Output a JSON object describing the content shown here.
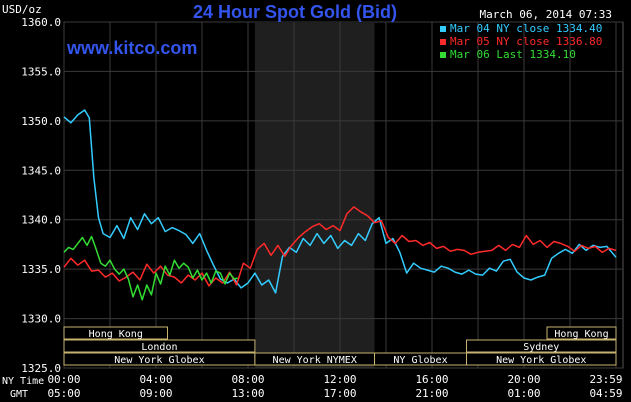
{
  "chart_data": {
    "type": "line",
    "title": "24 Hour Spot Gold (Bid)",
    "subtitle": "www.kitco.com",
    "date_stamp": "March 06, 2014 07:33",
    "ylabel": "USD/oz",
    "ylim": [
      1325,
      1360
    ],
    "y_ticks": [
      "1325.0",
      "1330.0",
      "1335.0",
      "1340.0",
      "1345.0",
      "1350.0",
      "1355.0",
      "1360.0"
    ],
    "x_ticks_ny": [
      "00:00",
      "04:00",
      "08:00",
      "12:00",
      "16:00",
      "20:00",
      "23:59"
    ],
    "x_ticks_gmt": [
      "05:00",
      "09:00",
      "13:00",
      "17:00",
      "21:00",
      "01:00",
      "04:59"
    ],
    "x_row_labels": [
      "NY Time",
      "GMT"
    ],
    "grid": true,
    "legend_position": "top-right",
    "x_unit": "NY hours",
    "sessions": [
      {
        "label": "Hong Kong",
        "start": 0,
        "end": 4.5,
        "row": 0
      },
      {
        "label": "Hong Kong",
        "start": 21,
        "end": 24,
        "row": 0
      },
      {
        "label": "London",
        "start": 0,
        "end": 8.3,
        "row": 1
      },
      {
        "label": "Sydney",
        "start": 17.5,
        "end": 24,
        "row": 1
      },
      {
        "label": "New York Globex",
        "start": 0,
        "end": 8.3,
        "row": 2
      },
      {
        "label": "New York NYMEX",
        "start": 8.3,
        "end": 13.5,
        "row": 2
      },
      {
        "label": "NY Globex",
        "start": 13.5,
        "end": 17.5,
        "row": 2
      },
      {
        "label": "New York Globex",
        "start": 17.5,
        "end": 24,
        "row": 2
      }
    ],
    "highlight_range": [
      8.3,
      13.5
    ],
    "series": [
      {
        "name": "Mar 04 NY close 1334.40",
        "color": "#33ccff",
        "x": [
          0,
          0.3,
          0.6,
          0.9,
          1.1,
          1.3,
          1.5,
          1.7,
          2,
          2.3,
          2.6,
          2.9,
          3.2,
          3.5,
          3.8,
          4.1,
          4.4,
          4.7,
          5,
          5.3,
          5.6,
          5.9,
          6.2,
          6.5,
          6.8,
          7.1,
          7.4,
          7.7,
          8,
          8.3,
          8.6,
          8.9,
          9.2,
          9.5,
          9.8,
          10.1,
          10.4,
          10.7,
          11,
          11.3,
          11.6,
          11.9,
          12.2,
          12.5,
          12.8,
          13.1,
          13.4,
          13.7,
          14,
          14.3,
          14.6,
          14.9,
          15.2,
          15.5,
          15.8,
          16.1,
          16.4,
          16.7,
          17,
          17.3,
          17.6,
          17.9,
          18.2,
          18.5,
          18.8,
          19.1,
          19.4,
          19.7,
          20,
          20.3,
          20.6,
          20.9,
          21.2,
          21.5,
          21.8,
          22.1,
          22.4,
          22.7,
          23,
          23.3,
          23.6,
          24
        ],
        "values": [
          1350.4,
          1349.8,
          1350.6,
          1351.1,
          1350.3,
          1344.2,
          1340.2,
          1338.6,
          1338.2,
          1339.4,
          1338.1,
          1340.2,
          1339.0,
          1340.6,
          1339.6,
          1340.2,
          1338.8,
          1339.2,
          1338.9,
          1338.5,
          1337.6,
          1338.6,
          1336.9,
          1335.4,
          1334.0,
          1333.6,
          1334.0,
          1333.1,
          1333.6,
          1334.6,
          1333.4,
          1333.9,
          1332.6,
          1336.3,
          1337.2,
          1336.7,
          1338.1,
          1337.4,
          1338.6,
          1337.6,
          1338.4,
          1337.1,
          1337.9,
          1337.4,
          1338.6,
          1337.9,
          1339.6,
          1340.2,
          1337.6,
          1338.1,
          1336.7,
          1334.6,
          1335.6,
          1335.1,
          1334.9,
          1334.7,
          1335.3,
          1335.1,
          1334.7,
          1334.5,
          1334.9,
          1334.5,
          1334.4,
          1335.1,
          1334.8,
          1335.8,
          1336.0,
          1334.7,
          1334.1,
          1333.9,
          1334.2,
          1334.4,
          1336.1,
          1336.6,
          1337.0,
          1336.6,
          1337.5,
          1336.9,
          1337.4,
          1337.2,
          1337.3,
          1336.2
        ]
      },
      {
        "name": "Mar 05 NY close 1336.80",
        "color": "#ff2a2a",
        "x": [
          0,
          0.3,
          0.6,
          0.9,
          1.2,
          1.5,
          1.8,
          2.1,
          2.4,
          2.7,
          3,
          3.3,
          3.6,
          3.9,
          4.2,
          4.5,
          4.8,
          5.1,
          5.4,
          5.7,
          6,
          6.3,
          6.6,
          6.9,
          7.2,
          7.5,
          7.8,
          8.1,
          8.4,
          8.7,
          9,
          9.3,
          9.6,
          9.9,
          10.2,
          10.5,
          10.8,
          11.1,
          11.4,
          11.7,
          12,
          12.3,
          12.6,
          12.9,
          13.2,
          13.5,
          13.8,
          14.1,
          14.4,
          14.7,
          15,
          15.3,
          15.6,
          15.9,
          16.2,
          16.5,
          16.8,
          17.1,
          17.4,
          17.7,
          18,
          18.3,
          18.6,
          18.9,
          19.2,
          19.5,
          19.8,
          20.1,
          20.4,
          20.7,
          21,
          21.3,
          21.6,
          21.9,
          22.2,
          22.5,
          22.8,
          23.1,
          23.4,
          23.7,
          24
        ],
        "values": [
          1335.2,
          1336.1,
          1335.4,
          1335.9,
          1334.8,
          1334.9,
          1334.2,
          1334.6,
          1333.8,
          1334.2,
          1334.7,
          1333.9,
          1335.5,
          1334.6,
          1335.3,
          1334.4,
          1334.2,
          1333.6,
          1334.4,
          1333.9,
          1334.6,
          1333.3,
          1334.1,
          1333.6,
          1334.7,
          1333.4,
          1335.6,
          1335.1,
          1337.0,
          1337.6,
          1336.4,
          1337.4,
          1336.3,
          1337.4,
          1338.2,
          1338.8,
          1339.3,
          1339.6,
          1339.0,
          1339.4,
          1338.9,
          1340.6,
          1341.3,
          1340.8,
          1340.4,
          1339.7,
          1339.9,
          1338.2,
          1337.6,
          1338.4,
          1337.8,
          1337.9,
          1337.4,
          1337.7,
          1337.1,
          1337.3,
          1336.8,
          1337.0,
          1336.9,
          1336.5,
          1336.7,
          1336.8,
          1336.9,
          1337.4,
          1336.9,
          1337.5,
          1337.2,
          1338.4,
          1337.5,
          1337.9,
          1337.2,
          1337.8,
          1337.6,
          1337.3,
          1336.8,
          1337.4,
          1337.1,
          1337.3,
          1336.7,
          1337.1,
          1336.9
        ]
      },
      {
        "name": "Mar 06 Last 1334.10",
        "color": "#33dd33",
        "x": [
          0,
          0.2,
          0.4,
          0.6,
          0.8,
          1,
          1.2,
          1.4,
          1.6,
          1.8,
          2,
          2.2,
          2.4,
          2.6,
          2.8,
          3,
          3.2,
          3.4,
          3.6,
          3.8,
          4,
          4.2,
          4.4,
          4.6,
          4.8,
          5,
          5.2,
          5.4,
          5.6,
          5.8,
          6,
          6.2,
          6.4,
          6.6,
          6.8,
          7,
          7.2,
          7.4,
          7.55
        ],
        "values": [
          1336.7,
          1337.2,
          1337.0,
          1337.6,
          1338.2,
          1337.4,
          1338.3,
          1337.0,
          1335.6,
          1335.3,
          1335.9,
          1335.0,
          1334.5,
          1335.0,
          1334.0,
          1332.2,
          1333.4,
          1331.9,
          1333.4,
          1332.4,
          1334.6,
          1333.5,
          1335.3,
          1334.4,
          1335.9,
          1335.1,
          1335.6,
          1335.2,
          1334.1,
          1334.9,
          1333.9,
          1334.6,
          1333.6,
          1334.8,
          1334.6,
          1333.5,
          1334.6,
          1334.0,
          1334.1
        ]
      }
    ]
  }
}
